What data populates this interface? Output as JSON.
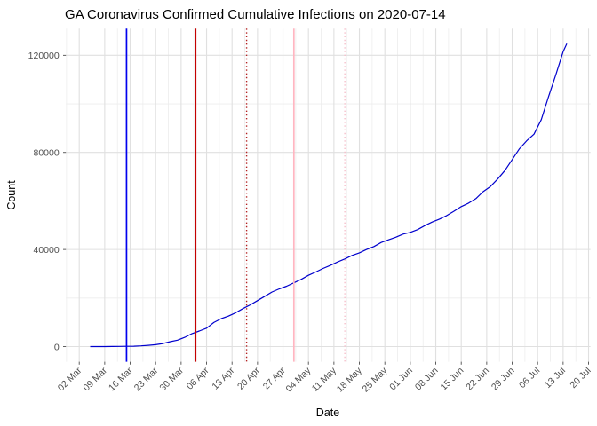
{
  "chart_data": {
    "type": "line",
    "title": "GA Coronavirus Confirmed Cumulative Infections on 2020-07-14",
    "xlabel": "Date",
    "ylabel": "Count",
    "legend": "none",
    "grid": "major+minor",
    "x_axis": {
      "start_tick_date": "2020-03-02",
      "tick_interval_days": 7,
      "tick_labels": [
        "02 Mar",
        "09 Mar",
        "16 Mar",
        "23 Mar",
        "30 Mar",
        "06 Apr",
        "13 Apr",
        "20 Apr",
        "27 Apr",
        "04 May",
        "11 May",
        "18 May",
        "25 May",
        "01 Jun",
        "08 Jun",
        "15 Jun",
        "22 Jun",
        "29 Jun",
        "06 Jul",
        "13 Jul",
        "20 Jul"
      ]
    },
    "y_axis": {
      "tick_values": [
        0,
        40000,
        80000,
        120000
      ],
      "tick_labels": [
        "0",
        "40000",
        "80000",
        "120000"
      ],
      "minor_tick_values": [
        20000,
        60000,
        100000
      ],
      "ylim": [
        0,
        124800
      ]
    },
    "colors": {
      "series_line": "#0000CD",
      "grid_major": "#E0E0E0",
      "grid_minor": "#EDEDED",
      "tick_text": "#4D4D4D",
      "title_text": "#000000",
      "background": "#FFFFFF"
    },
    "series": [
      {
        "name": "GA confirmed cumulative infections",
        "color": "#0000CD",
        "points": [
          [
            "2020-03-05",
            2
          ],
          [
            "2020-03-07",
            7
          ],
          [
            "2020-03-09",
            17
          ],
          [
            "2020-03-11",
            31
          ],
          [
            "2020-03-13",
            64
          ],
          [
            "2020-03-15",
            99
          ],
          [
            "2020-03-17",
            146
          ],
          [
            "2020-03-19",
            287
          ],
          [
            "2020-03-21",
            507
          ],
          [
            "2020-03-23",
            772
          ],
          [
            "2020-03-25",
            1247
          ],
          [
            "2020-03-27",
            2001
          ],
          [
            "2020-03-29",
            2651
          ],
          [
            "2020-03-31",
            3817
          ],
          [
            "2020-04-02",
            5348
          ],
          [
            "2020-04-04",
            6383
          ],
          [
            "2020-04-06",
            7558
          ],
          [
            "2020-04-08",
            9901
          ],
          [
            "2020-04-10",
            11485
          ],
          [
            "2020-04-12",
            12550
          ],
          [
            "2020-04-14",
            13915
          ],
          [
            "2020-04-16",
            15669
          ],
          [
            "2020-04-18",
            17194
          ],
          [
            "2020-04-20",
            18947
          ],
          [
            "2020-04-22",
            20740
          ],
          [
            "2020-04-24",
            22491
          ],
          [
            "2020-04-26",
            23773
          ],
          [
            "2020-04-28",
            24854
          ],
          [
            "2020-04-30",
            26264
          ],
          [
            "2020-05-02",
            27670
          ],
          [
            "2020-05-04",
            29368
          ],
          [
            "2020-05-06",
            30707
          ],
          [
            "2020-05-08",
            32181
          ],
          [
            "2020-05-10",
            33441
          ],
          [
            "2020-05-12",
            34848
          ],
          [
            "2020-05-14",
            36108
          ],
          [
            "2020-05-16",
            37552
          ],
          [
            "2020-05-18",
            38624
          ],
          [
            "2020-05-20",
            39999
          ],
          [
            "2020-05-22",
            41218
          ],
          [
            "2020-05-24",
            42902
          ],
          [
            "2020-05-26",
            43982
          ],
          [
            "2020-05-28",
            45070
          ],
          [
            "2020-05-30",
            46344
          ],
          [
            "2020-06-01",
            47063
          ],
          [
            "2020-06-03",
            48207
          ],
          [
            "2020-06-05",
            49847
          ],
          [
            "2020-06-07",
            51309
          ],
          [
            "2020-06-09",
            52497
          ],
          [
            "2020-06-11",
            53980
          ],
          [
            "2020-06-13",
            55783
          ],
          [
            "2020-06-15",
            57681
          ],
          [
            "2020-06-17",
            59078
          ],
          [
            "2020-06-19",
            60912
          ],
          [
            "2020-06-21",
            63809
          ],
          [
            "2020-06-23",
            65928
          ],
          [
            "2020-06-25",
            69000
          ],
          [
            "2020-06-27",
            72500
          ],
          [
            "2020-06-29",
            77000
          ],
          [
            "2020-07-01",
            81500
          ],
          [
            "2020-07-03",
            84800
          ],
          [
            "2020-07-05",
            87500
          ],
          [
            "2020-07-07",
            93500
          ],
          [
            "2020-07-09",
            103000
          ],
          [
            "2020-07-11",
            112000
          ],
          [
            "2020-07-13",
            121500
          ],
          [
            "2020-07-14",
            124800
          ]
        ]
      }
    ],
    "vlines": [
      {
        "date": "2020-03-15",
        "color": "#0000EE",
        "style": "solid"
      },
      {
        "date": "2020-04-03",
        "color": "#C40000",
        "style": "solid"
      },
      {
        "date": "2020-04-17",
        "color": "#B22222",
        "style": "dotted"
      },
      {
        "date": "2020-04-30",
        "color": "#FFB6C1",
        "style": "solid"
      },
      {
        "date": "2020-05-14",
        "color": "#F6BFCB",
        "style": "dotted"
      }
    ]
  }
}
